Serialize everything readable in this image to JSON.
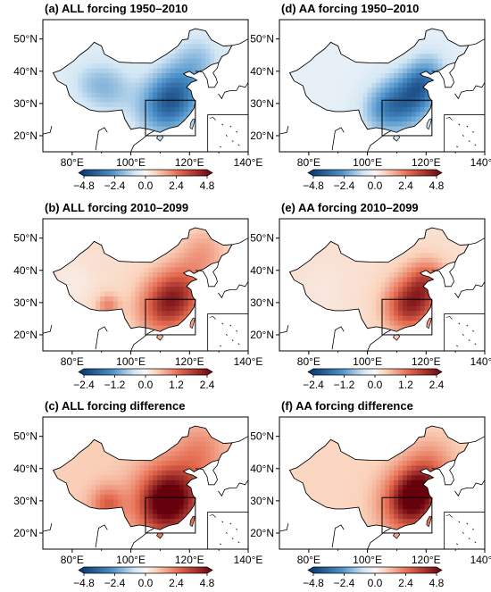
{
  "axes": {
    "lon_ticks": [
      "80°E",
      "100°E",
      "120°E",
      "140°E"
    ],
    "lat_ticks": [
      "50°N",
      "40°N",
      "30°N",
      "20°N"
    ]
  },
  "colors": {
    "neg_dark": "#08306b",
    "neg_mid": "#4a90c8",
    "neg_light": "#d4e7f5",
    "neutral": "#f7f7f7",
    "pos_light": "#fbd2bb",
    "pos_mid": "#e4694e",
    "pos_dark": "#67000d"
  },
  "colorbars": {
    "row_a": [
      "−4.8",
      "−2.4",
      "0.0",
      "2.4",
      "4.8"
    ],
    "row_b": [
      "−2.4",
      "−1.2",
      "0.0",
      "1.2",
      "2.4"
    ],
    "row_c": [
      "−4.8",
      "−2.4",
      "0.0",
      "2.4",
      "4.8"
    ]
  },
  "panels": [
    {
      "id": "a",
      "title": "(a) ALL forcing 1950–2010",
      "palette": "neg",
      "pattern": "all_neg"
    },
    {
      "id": "d",
      "title": "(d) AA forcing 1950–2010",
      "palette": "neg",
      "pattern": "aa_neg"
    },
    {
      "id": "b",
      "title": "(b) ALL forcing 2010–2099",
      "palette": "pos",
      "pattern": "all_pos_b"
    },
    {
      "id": "e",
      "title": "(e) AA forcing 2010–2099",
      "palette": "pos",
      "pattern": "aa_pos_e"
    },
    {
      "id": "c",
      "title": "(c) ALL forcing difference",
      "palette": "pos",
      "pattern": "all_pos_c"
    },
    {
      "id": "f",
      "title": "(f) AA forcing difference",
      "palette": "pos",
      "pattern": "aa_pos_f"
    }
  ]
}
